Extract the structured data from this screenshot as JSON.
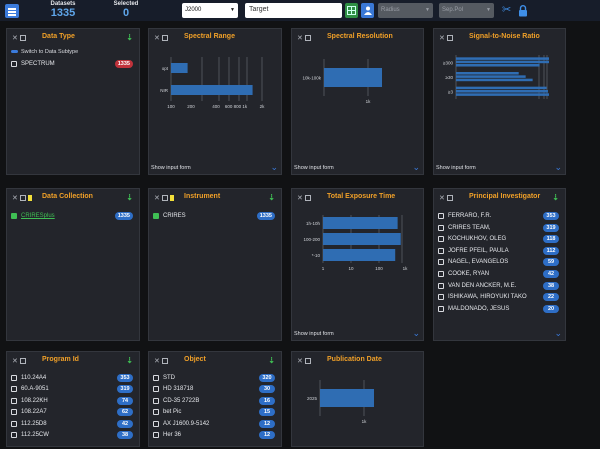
{
  "topbar": {
    "datasets_label": "Datasets",
    "datasets_value": "1335",
    "selected_label": "Selected",
    "selected_value": "0",
    "epoch": "J2000",
    "target_placeholder": "Target",
    "radius_placeholder": "Radius",
    "sep_placeholder": "Sep.Pol",
    "accent": "#3b7bdc"
  },
  "common": {
    "show_input_form": "Show input form"
  },
  "data_type": {
    "title": "Data Type",
    "switch_label": "Switch to Data Subtype",
    "items": [
      {
        "label": "SPECTRUM",
        "count": "1335"
      }
    ]
  },
  "data_collection": {
    "title": "Data Collection",
    "items": [
      {
        "label": "CRIRESplus",
        "count": "1335"
      }
    ]
  },
  "instrument": {
    "title": "Instrument",
    "items": [
      {
        "label": "CRIRES",
        "count": "1335"
      }
    ]
  },
  "principal_investigator": {
    "title": "Principal Investigator",
    "items": [
      {
        "label": "FERRARO, F.R.",
        "count": "353"
      },
      {
        "label": "CRIRES TEAM,",
        "count": "319"
      },
      {
        "label": "KOCHUKHOV, OLEG",
        "count": "118"
      },
      {
        "label": "JOFRE PFEIL, PAULA",
        "count": "112"
      },
      {
        "label": "NAGEL, EVANGELOS",
        "count": "59"
      },
      {
        "label": "COOKE, RYAN",
        "count": "42"
      },
      {
        "label": "VAN DEN ANCKER, M.E.",
        "count": "38"
      },
      {
        "label": "ISHIKAWA, HIROYUKI TAKO",
        "count": "22"
      },
      {
        "label": "MALDONADO, JESUS",
        "count": "20"
      }
    ]
  },
  "program_id": {
    "title": "Program Id",
    "items": [
      {
        "label": "110.24A4",
        "count": "353"
      },
      {
        "label": "60.A-9051",
        "count": "319"
      },
      {
        "label": "108.22KH",
        "count": "74"
      },
      {
        "label": "108.22A7",
        "count": "62"
      },
      {
        "label": "112.25D8",
        "count": "42"
      },
      {
        "label": "112.25CW",
        "count": "38"
      }
    ]
  },
  "object": {
    "title": "Object",
    "items": [
      {
        "label": "STD",
        "count": "320"
      },
      {
        "label": "HD 318718",
        "count": "30"
      },
      {
        "label": "CD-35 2722B",
        "count": "16"
      },
      {
        "label": "bet Pic",
        "count": "15"
      },
      {
        "label": "AX J1600.9-5142",
        "count": "12"
      },
      {
        "label": "Her 36",
        "count": "12"
      }
    ]
  },
  "chart_data": [
    {
      "type": "bar",
      "title": "Spectral Range",
      "orientation": "horizontal",
      "axis_scale": "log",
      "categories": [
        "opt",
        "NIR"
      ],
      "values": [
        180,
        1800
      ],
      "xlim": [
        100,
        3000
      ],
      "xticks": [
        "100",
        "200",
        "400",
        "600 800 1k",
        "2k"
      ]
    },
    {
      "type": "bar",
      "title": "Spectral Resolution",
      "orientation": "horizontal",
      "categories": [
        "10k-100k"
      ],
      "values": [
        1335
      ],
      "xticks": [
        "1k"
      ]
    },
    {
      "type": "bar",
      "title": "Signal-to-Noise Ratio",
      "orientation": "horizontal",
      "categories": [
        "≥300",
        "≥30",
        "≥3"
      ],
      "series": [
        {
          "values": [
            1335,
            900,
            1300
          ]
        },
        {
          "values": [
            1335,
            1000,
            1320
          ]
        },
        {
          "values": [
            1200,
            1100,
            1335
          ]
        }
      ]
    },
    {
      "type": "bar",
      "title": "Total Exposure Time",
      "orientation": "horizontal",
      "axis_scale": "log",
      "categories": [
        "1h-10h",
        "100-200",
        "*-10"
      ],
      "values": [
        1000,
        1335,
        800
      ],
      "xticks": [
        "1",
        "10",
        "100",
        "1k"
      ]
    },
    {
      "type": "bar",
      "title": "Publication Date",
      "orientation": "horizontal",
      "categories": [
        "2025"
      ],
      "values": [
        1335
      ],
      "xticks": [
        "1k"
      ]
    }
  ]
}
